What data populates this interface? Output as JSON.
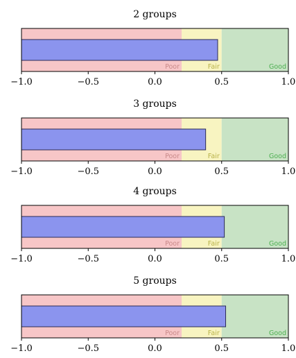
{
  "chart_data": [
    {
      "type": "bar",
      "title": "2 groups",
      "value": 0.47,
      "xlim": [
        -1.0,
        1.0
      ],
      "xticks": [
        -1.0,
        -0.5,
        0.0,
        0.5,
        1.0
      ],
      "xtick_labels": [
        "−1.0",
        "−0.5",
        "0.0",
        "0.5",
        "1.0"
      ],
      "bands": [
        {
          "label": "Poor",
          "from": -1.0,
          "to": 0.2,
          "color": "#f7c6c7",
          "label_color": "#c98a8a"
        },
        {
          "label": "Fair",
          "from": 0.2,
          "to": 0.5,
          "color": "#f8f4c1",
          "label_color": "#b8b24a"
        },
        {
          "label": "Good",
          "from": 0.5,
          "to": 1.0,
          "color": "#c8e3c5",
          "label_color": "#4caf50"
        }
      ],
      "bar_color": "#8b94ee"
    },
    {
      "type": "bar",
      "title": "3 groups",
      "value": 0.38,
      "xlim": [
        -1.0,
        1.0
      ],
      "xticks": [
        -1.0,
        -0.5,
        0.0,
        0.5,
        1.0
      ],
      "xtick_labels": [
        "−1.0",
        "−0.5",
        "0.0",
        "0.5",
        "1.0"
      ],
      "bands": [
        {
          "label": "Poor",
          "from": -1.0,
          "to": 0.2,
          "color": "#f7c6c7",
          "label_color": "#c98a8a"
        },
        {
          "label": "Fair",
          "from": 0.2,
          "to": 0.5,
          "color": "#f8f4c1",
          "label_color": "#b8b24a"
        },
        {
          "label": "Good",
          "from": 0.5,
          "to": 1.0,
          "color": "#c8e3c5",
          "label_color": "#4caf50"
        }
      ],
      "bar_color": "#8b94ee"
    },
    {
      "type": "bar",
      "title": "4 groups",
      "value": 0.52,
      "xlim": [
        -1.0,
        1.0
      ],
      "xticks": [
        -1.0,
        -0.5,
        0.0,
        0.5,
        1.0
      ],
      "xtick_labels": [
        "−1.0",
        "−0.5",
        "0.0",
        "0.5",
        "1.0"
      ],
      "bands": [
        {
          "label": "Poor",
          "from": -1.0,
          "to": 0.2,
          "color": "#f7c6c7",
          "label_color": "#c98a8a"
        },
        {
          "label": "Fair",
          "from": 0.2,
          "to": 0.5,
          "color": "#f8f4c1",
          "label_color": "#b8b24a"
        },
        {
          "label": "Good",
          "from": 0.5,
          "to": 1.0,
          "color": "#c8e3c5",
          "label_color": "#4caf50"
        }
      ],
      "bar_color": "#8b94ee"
    },
    {
      "type": "bar",
      "title": "5 groups",
      "value": 0.53,
      "xlim": [
        -1.0,
        1.0
      ],
      "xticks": [
        -1.0,
        -0.5,
        0.0,
        0.5,
        1.0
      ],
      "xtick_labels": [
        "−1.0",
        "−0.5",
        "0.0",
        "0.5",
        "1.0"
      ],
      "bands": [
        {
          "label": "Poor",
          "from": -1.0,
          "to": 0.2,
          "color": "#f7c6c7",
          "label_color": "#c98a8a"
        },
        {
          "label": "Fair",
          "from": 0.2,
          "to": 0.5,
          "color": "#f8f4c1",
          "label_color": "#b8b24a"
        },
        {
          "label": "Good",
          "from": 0.5,
          "to": 1.0,
          "color": "#c8e3c5",
          "label_color": "#4caf50"
        }
      ],
      "bar_color": "#8b94ee"
    }
  ]
}
